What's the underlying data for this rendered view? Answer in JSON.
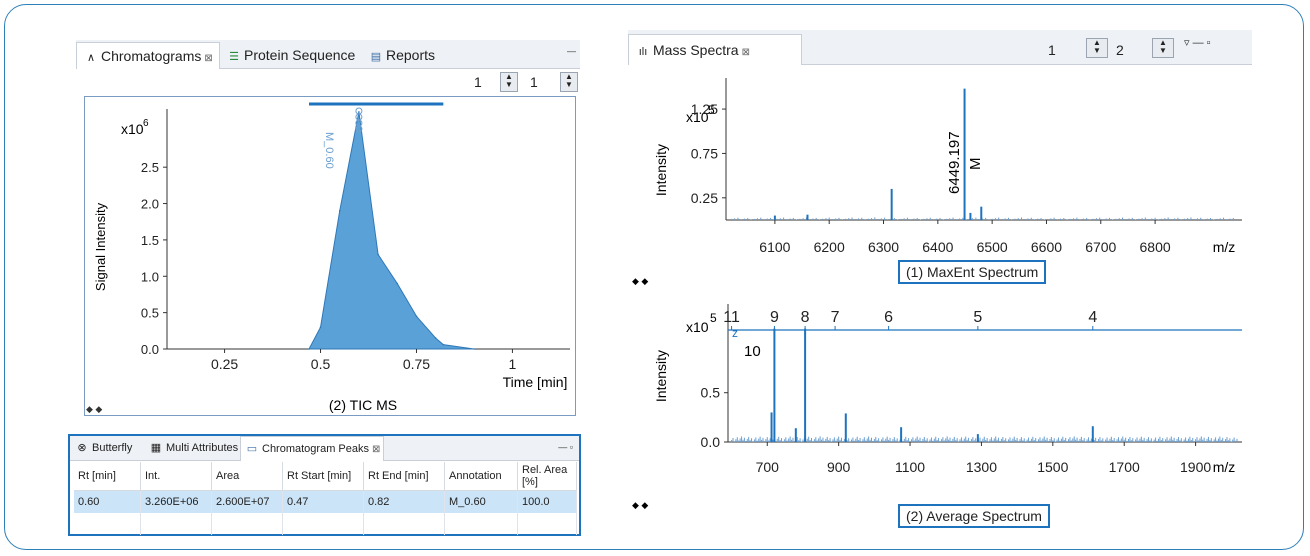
{
  "left_panel": {
    "tabs": [
      {
        "label": "Chromatograms",
        "icon": "chromatogram-icon"
      },
      {
        "label": "Protein Sequence",
        "icon": "sequence-icon"
      },
      {
        "label": "Reports",
        "icon": "reports-icon"
      }
    ],
    "spinners": [
      "1",
      "1"
    ],
    "chart": {
      "caption": "(2) TIC MS",
      "ylabel": "Signal Intensity",
      "xlabel": "Time [min]",
      "y_exp_base": "x10",
      "y_exp": "6",
      "yticks": [
        "0.0",
        "0.5",
        "1.0",
        "1.5",
        "2.0",
        "2.5"
      ],
      "xticks": [
        "0.25",
        "0.5",
        "0.75",
        "1"
      ],
      "peak_label": "M_0.60"
    }
  },
  "peaks_panel": {
    "tabs": [
      {
        "label": "Butterfly",
        "icon": "butterfly-icon"
      },
      {
        "label": "Multi Attributes",
        "icon": "grid-icon"
      },
      {
        "label": "Chromatogram Peaks",
        "icon": "table-icon"
      }
    ],
    "columns": [
      "Rt [min]",
      "Int.",
      "Area",
      "Rt Start [min]",
      "Rt End [min]",
      "Annotation",
      "Rel. Area [%]"
    ],
    "rows": [
      [
        "0.60",
        "3.260E+06",
        "2.600E+07",
        "0.47",
        "0.82",
        "M_0.60",
        "100.0"
      ]
    ]
  },
  "right_panel": {
    "tab": {
      "label": "Mass Spectra",
      "icon": "mass-spectra-icon"
    },
    "spinners": [
      "1",
      "2"
    ],
    "top_chart": {
      "caption": "(1) MaxEnt Spectrum",
      "ylabel": "Intensity",
      "xlabel": "m/z",
      "y_exp_base": "x10",
      "y_exp": "5",
      "yticks": [
        "0.25",
        "0.75",
        "1.25"
      ],
      "xticks": [
        "6100",
        "6200",
        "6300",
        "6400",
        "6500",
        "6600",
        "6700",
        "6800"
      ],
      "peak_mass": "6449.197",
      "peak_tag": "M"
    },
    "bottom_chart": {
      "caption": "(2) Average Spectrum",
      "ylabel": "Intensity",
      "xlabel": "m/z",
      "y_exp_base": "x10",
      "y_exp": "5",
      "yticks": [
        "0.0",
        "0.5"
      ],
      "xticks": [
        "700",
        "900",
        "1100",
        "1300",
        "1500",
        "1700",
        "1900"
      ],
      "charge_states": [
        "11",
        "9",
        "8",
        "7",
        "6",
        "5",
        "4"
      ],
      "charge_extra": "10",
      "z_label": "z"
    }
  },
  "chart_data": [
    {
      "type": "area",
      "title": "(2) TIC MS",
      "xlabel": "Time [min]",
      "ylabel": "Signal Intensity",
      "xlim": [
        0.1,
        1.15
      ],
      "ylim": [
        0,
        3300000
      ],
      "x": [
        0.47,
        0.5,
        0.55,
        0.6,
        0.65,
        0.7,
        0.75,
        0.8,
        0.82,
        0.9
      ],
      "y": [
        0,
        300000,
        1900000,
        3260000,
        1300000,
        900000,
        450000,
        150000,
        60000,
        0
      ]
    },
    {
      "type": "bar",
      "title": "(1) MaxEnt Spectrum",
      "xlabel": "m/z",
      "ylabel": "Intensity",
      "xlim": [
        6010,
        6960
      ],
      "ylim": [
        0,
        160000
      ],
      "x": [
        6100,
        6160,
        6315,
        6449.197,
        6460,
        6480
      ],
      "values": [
        5000,
        6000,
        35000,
        148000,
        8000,
        15000
      ]
    },
    {
      "type": "bar",
      "title": "(2) Average Spectrum",
      "xlabel": "m/z",
      "ylabel": "Intensity",
      "xlim": [
        590,
        2030
      ],
      "ylim": [
        0,
        140000
      ],
      "x": [
        712,
        720,
        780,
        806,
        920,
        1075,
        1290,
        1612
      ],
      "values": [
        30000,
        115000,
        14000,
        115000,
        29000,
        15000,
        8000,
        16000
      ]
    }
  ]
}
